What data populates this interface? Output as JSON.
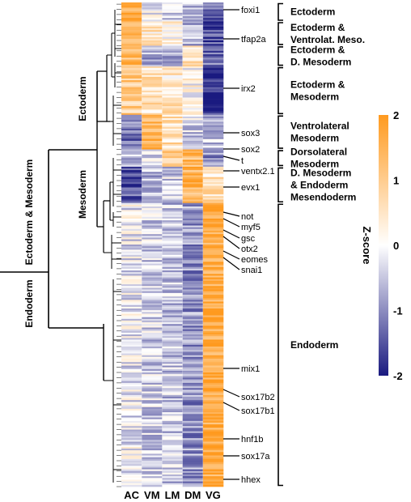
{
  "chart_data": {
    "type": "heatmap",
    "columns": [
      "AC",
      "VM",
      "LM",
      "DM",
      "VG"
    ],
    "colorbar": {
      "label": "Z-score",
      "min": -2,
      "max": 2,
      "ticks": [
        "2",
        "1",
        "0",
        "-1",
        "-2"
      ],
      "colors": {
        "low": "#1a1a80",
        "mid": "#ffffff",
        "high": "#ff9a1f"
      }
    },
    "dendrogram_labels": [
      "Ectoderm & Mesoderm",
      "Ectoderm",
      "Mesoderm",
      "Endoderm"
    ],
    "gene_labels": [
      "foxi1",
      "tfap2a",
      "irx2",
      "sox3",
      "sox2",
      "t",
      "ventx2.1",
      "evx1",
      "not",
      "myf5",
      "gsc",
      "otx2",
      "eomes",
      "snai1",
      "mix1",
      "sox17b2",
      "sox17b1",
      "hnf1b",
      "sox17a",
      "hhex"
    ],
    "clusters": [
      {
        "lines": [
          "Ectoderm"
        ],
        "row_start": 0,
        "row_end": 11,
        "profile": [
          1.6,
          -0.2,
          -0.4,
          -0.7,
          -1.3
        ]
      },
      {
        "lines": [
          "Ectoderm &",
          "Ventrolat. Meso."
        ],
        "row_start": 11,
        "row_end": 25,
        "profile": [
          1.4,
          0.5,
          0.2,
          -0.6,
          -1.6
        ]
      },
      {
        "lines": [
          "Ectoderm &",
          "D. Mesoderm"
        ],
        "row_start": 25,
        "row_end": 37,
        "profile": [
          1.3,
          -0.8,
          -0.6,
          0.6,
          -1.3
        ]
      },
      {
        "lines": [
          "Ectoderm &",
          "Mesoderm"
        ],
        "row_start": 37,
        "row_end": 65,
        "profile": [
          1.0,
          0.5,
          0.5,
          0.1,
          -1.9
        ]
      },
      {
        "lines": [
          "Ventrolateral",
          "Mesoderm"
        ],
        "row_start": 65,
        "row_end": 85,
        "profile": [
          -1.2,
          1.5,
          0.6,
          -0.4,
          -0.5
        ]
      },
      {
        "lines": [
          "Dorsolateral",
          "Mesoderm"
        ],
        "row_start": 85,
        "row_end": 95,
        "profile": [
          -0.6,
          -0.3,
          0.9,
          1.4,
          -1.0
        ]
      },
      {
        "lines": [
          "D. Mesoderm",
          "& Endoderm",
          "Mesendoderm"
        ],
        "row_start": 95,
        "row_end": 116,
        "profile": [
          -1.5,
          -0.6,
          -0.4,
          1.5,
          0.6
        ]
      },
      {
        "lines": [
          "Endoderm"
        ],
        "row_start": 116,
        "row_end": 280,
        "profile": [
          -0.2,
          -0.4,
          -0.5,
          -0.9,
          1.7
        ]
      }
    ],
    "total_rows": 280
  }
}
